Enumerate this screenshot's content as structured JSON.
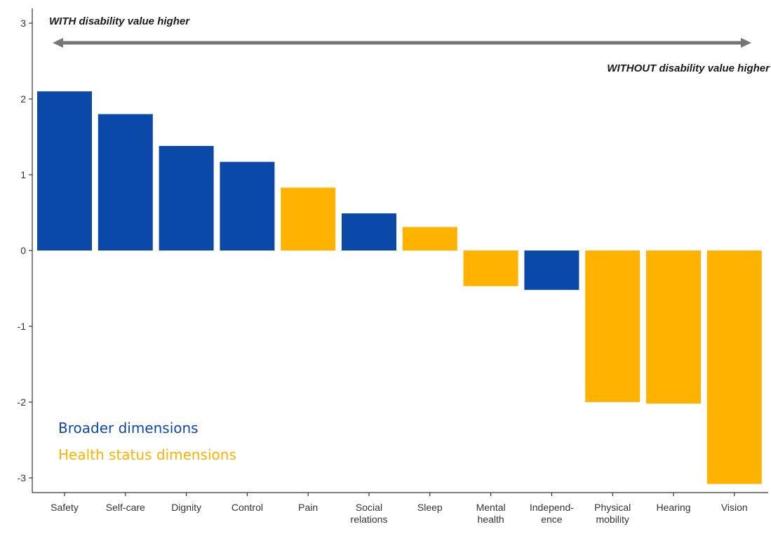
{
  "chart_data": {
    "type": "bar",
    "categories": [
      [
        "Safety"
      ],
      [
        "Self-care"
      ],
      [
        "Dignity"
      ],
      [
        "Control"
      ],
      [
        "Pain"
      ],
      [
        "Social",
        "relations"
      ],
      [
        "Sleep"
      ],
      [
        "Mental",
        "health"
      ],
      [
        "Independ-",
        "ence"
      ],
      [
        "Physical",
        "mobility"
      ],
      [
        "Hearing"
      ],
      [
        "Vision"
      ]
    ],
    "values": [
      2.1,
      1.8,
      1.38,
      1.17,
      0.83,
      0.49,
      0.31,
      -0.47,
      -0.52,
      -2.0,
      -2.02,
      -3.08
    ],
    "groups": [
      "broader",
      "broader",
      "broader",
      "broader",
      "health",
      "broader",
      "health",
      "health",
      "broader",
      "health",
      "health",
      "health"
    ],
    "group_colors": {
      "broader": "#0b49a8",
      "health": "#ffb300"
    },
    "ylim": [
      -3.25,
      3.25
    ],
    "yticks": [
      -3,
      -2,
      -1,
      0,
      1,
      2,
      3
    ],
    "title": "",
    "xlabel": "",
    "ylabel": "",
    "grid": false,
    "annotations": {
      "with_higher": "WITH disability value higher",
      "without_higher": "WITHOUT disability value higher"
    },
    "legend": {
      "placement": "bottom-left",
      "items": [
        {
          "label": "Broader dimensions",
          "color": "#0b49a8"
        },
        {
          "label": "Health status dimensions",
          "color": "#ffb300"
        }
      ]
    }
  }
}
